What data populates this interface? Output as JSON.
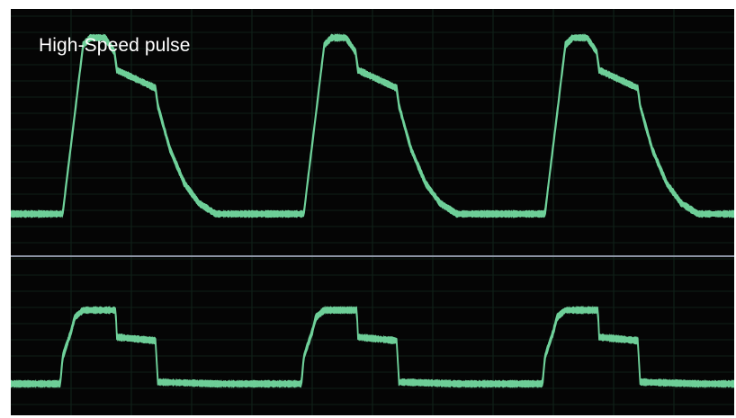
{
  "label": "High-Speed pulse",
  "colors": {
    "background": "#050505",
    "trace": "#6fd19a",
    "divider": "#8a93a3",
    "grid_major": "#1b4030",
    "grid_minor": "#0f1f18"
  },
  "chart_data": [
    {
      "type": "line",
      "title": "High-Speed pulse",
      "panel": "top",
      "xlim": [
        0,
        3
      ],
      "ylim": [
        -0.05,
        1.05
      ],
      "grid": true,
      "period": 1,
      "noise_band": 0.035,
      "series": [
        {
          "x": [
            0,
            0.215,
            0.3,
            0.33,
            0.39,
            0.43,
            0.44,
            0.6,
            0.61,
            0.66,
            0.72,
            0.78,
            0.85,
            1.0
          ],
          "values": [
            0.0,
            0.0,
            0.94,
            0.98,
            0.98,
            0.9,
            0.8,
            0.7,
            0.6,
            0.36,
            0.17,
            0.06,
            0.0,
            0.0
          ]
        }
      ]
    },
    {
      "type": "line",
      "panel": "bottom",
      "xlim": [
        0,
        3
      ],
      "ylim": [
        -0.05,
        1.05
      ],
      "grid": true,
      "period": 1,
      "noise_band": 0.07,
      "series": [
        {
          "x": [
            0,
            0.205,
            0.215,
            0.25,
            0.265,
            0.3,
            0.435,
            0.44,
            0.6,
            0.61,
            0.86,
            1.0
          ],
          "values": [
            0.0,
            0.0,
            0.3,
            0.58,
            0.74,
            0.82,
            0.82,
            0.52,
            0.48,
            0.02,
            0.0,
            0.0
          ]
        }
      ]
    }
  ]
}
